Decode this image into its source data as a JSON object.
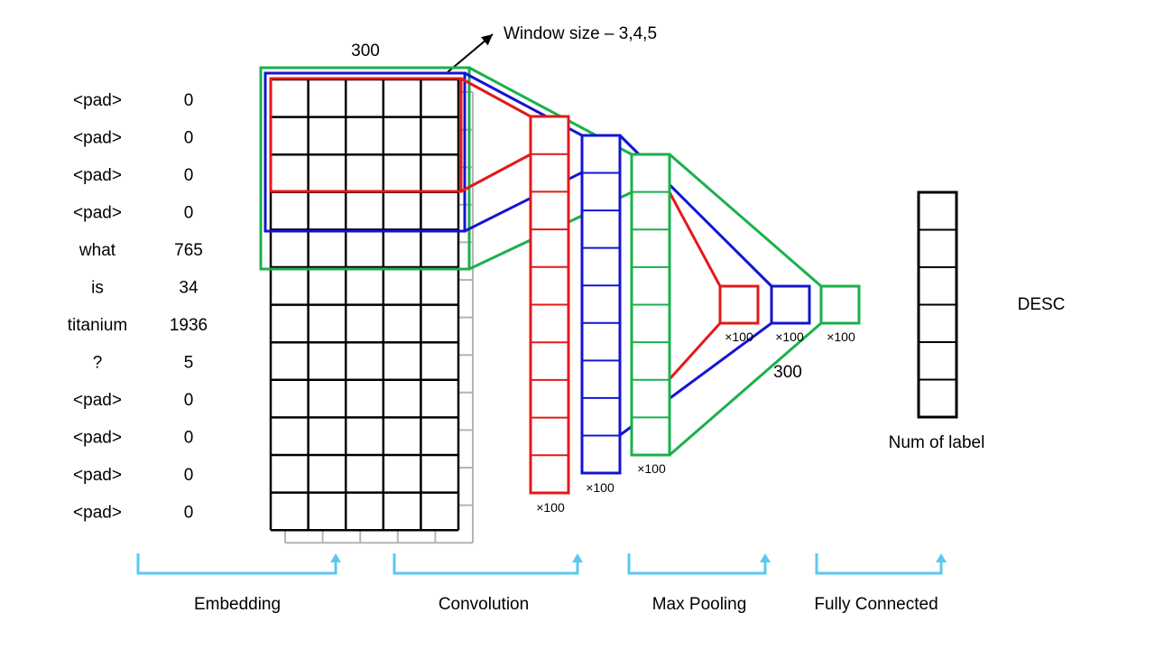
{
  "tokens": [
    {
      "word": "<pad>",
      "id": "0"
    },
    {
      "word": "<pad>",
      "id": "0"
    },
    {
      "word": "<pad>",
      "id": "0"
    },
    {
      "word": "<pad>",
      "id": "0"
    },
    {
      "word": "what",
      "id": "765"
    },
    {
      "word": "is",
      "id": "34"
    },
    {
      "word": "titanium",
      "id": "1936"
    },
    {
      "word": "?",
      "id": "5"
    },
    {
      "word": "<pad>",
      "id": "0"
    },
    {
      "word": "<pad>",
      "id": "0"
    },
    {
      "word": "<pad>",
      "id": "0"
    },
    {
      "word": "<pad>",
      "id": "0"
    }
  ],
  "embedding_dim_label": "300",
  "window_label": "Window size – 3,4,5",
  "feature_maps_label": "×100",
  "concat_dim_label": "300",
  "output_label": "Num  of label",
  "class_label": "DESC",
  "stages": [
    "Embedding",
    "Convolution",
    "Max Pooling",
    "Fully Connected"
  ],
  "colors": {
    "window3": "#e31919",
    "window4": "#1414d2",
    "window5": "#19b14b",
    "grid": "#000000",
    "shadow_grid": "#b4b4b4",
    "bracket": "#5bc8ef"
  }
}
